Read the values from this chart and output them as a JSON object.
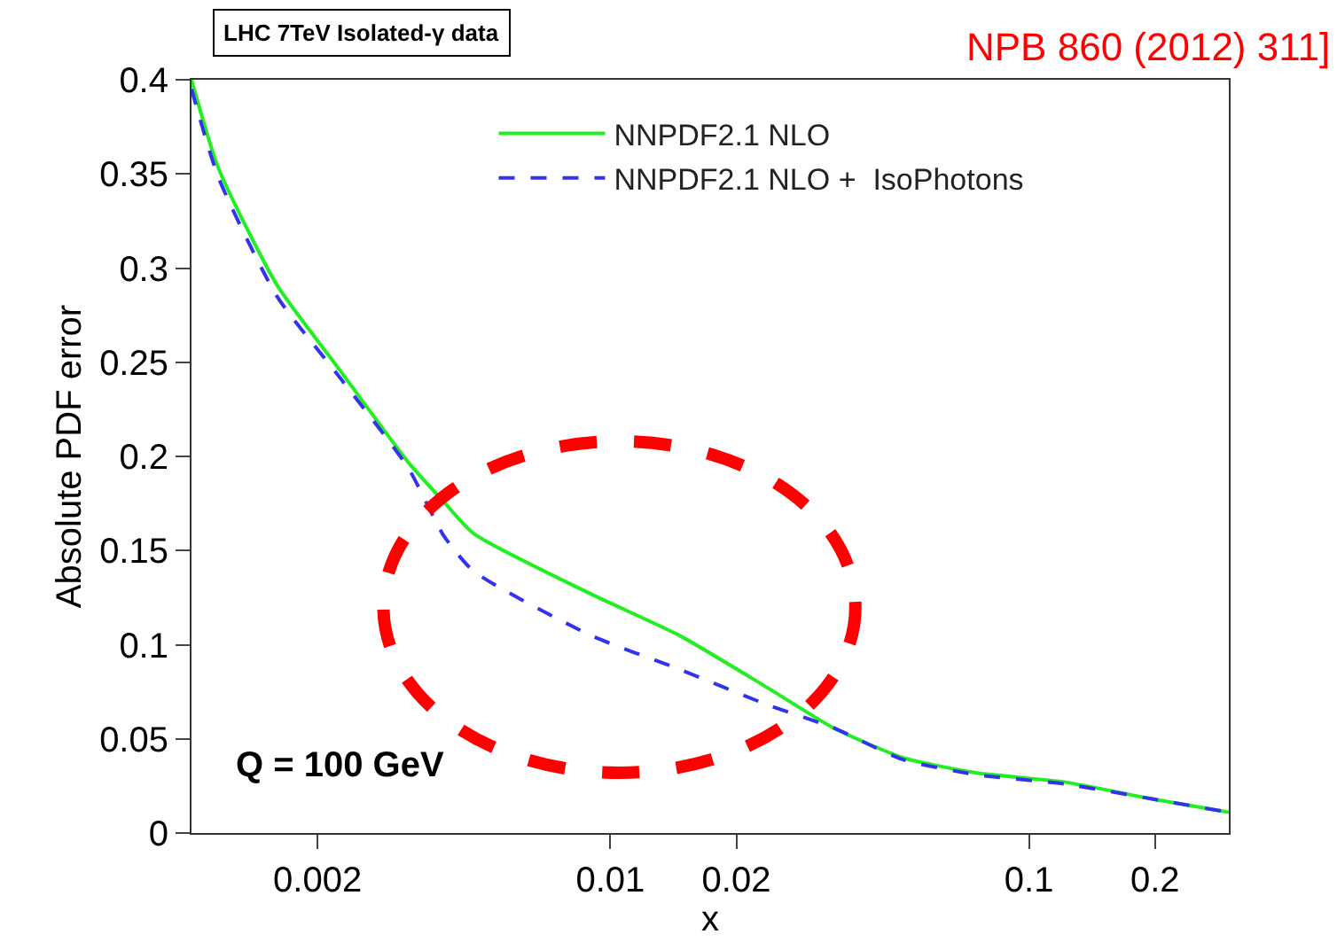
{
  "chart_data": {
    "type": "line",
    "title": "LHC 7TeV Isolated-γ data",
    "xlabel": "x",
    "ylabel": "Absolute PDF error",
    "annotations": [
      "NPB 860 (2012) 311]",
      "Q = 100 GeV"
    ],
    "log": "x",
    "xlim": [
      0.001,
      0.3
    ],
    "xticks": [
      0.002,
      0.01,
      0.02,
      0.1,
      0.2
    ],
    "ylim": [
      0,
      0.4
    ],
    "yticks": [
      0,
      0.05,
      0.1,
      0.15,
      0.2,
      0.25,
      0.3,
      0.35,
      0.4
    ],
    "legend": "top",
    "marker": "none",
    "series": [
      {
        "name": "NNPDF2.1 NLO",
        "color": "#22ee22",
        "line_style": "solid",
        "x": [
          0.001,
          0.00116,
          0.0016,
          0.00224,
          0.00329,
          0.004,
          0.00472,
          0.00898,
          0.0146,
          0.0238,
          0.034,
          0.05,
          0.0746,
          0.122,
          0.198,
          0.3
        ],
        "values": [
          0.4,
          0.353,
          0.291,
          0.247,
          0.197,
          0.176,
          0.159,
          0.127,
          0.105,
          0.077,
          0.056,
          0.04,
          0.032,
          0.027,
          0.018,
          0.011
        ]
      },
      {
        "name": "NNPDF2.1 NLO +  IsoPhotons",
        "color": "#3333ee",
        "line_style": "dashed",
        "x": [
          0.001,
          0.00116,
          0.0016,
          0.00224,
          0.00329,
          0.004,
          0.00472,
          0.00898,
          0.0146,
          0.0238,
          0.034,
          0.05,
          0.0746,
          0.122,
          0.198,
          0.3
        ],
        "values": [
          0.395,
          0.348,
          0.285,
          0.243,
          0.194,
          0.158,
          0.139,
          0.105,
          0.087,
          0.068,
          0.056,
          0.039,
          0.031,
          0.026,
          0.018,
          0.011
        ]
      }
    ]
  }
}
